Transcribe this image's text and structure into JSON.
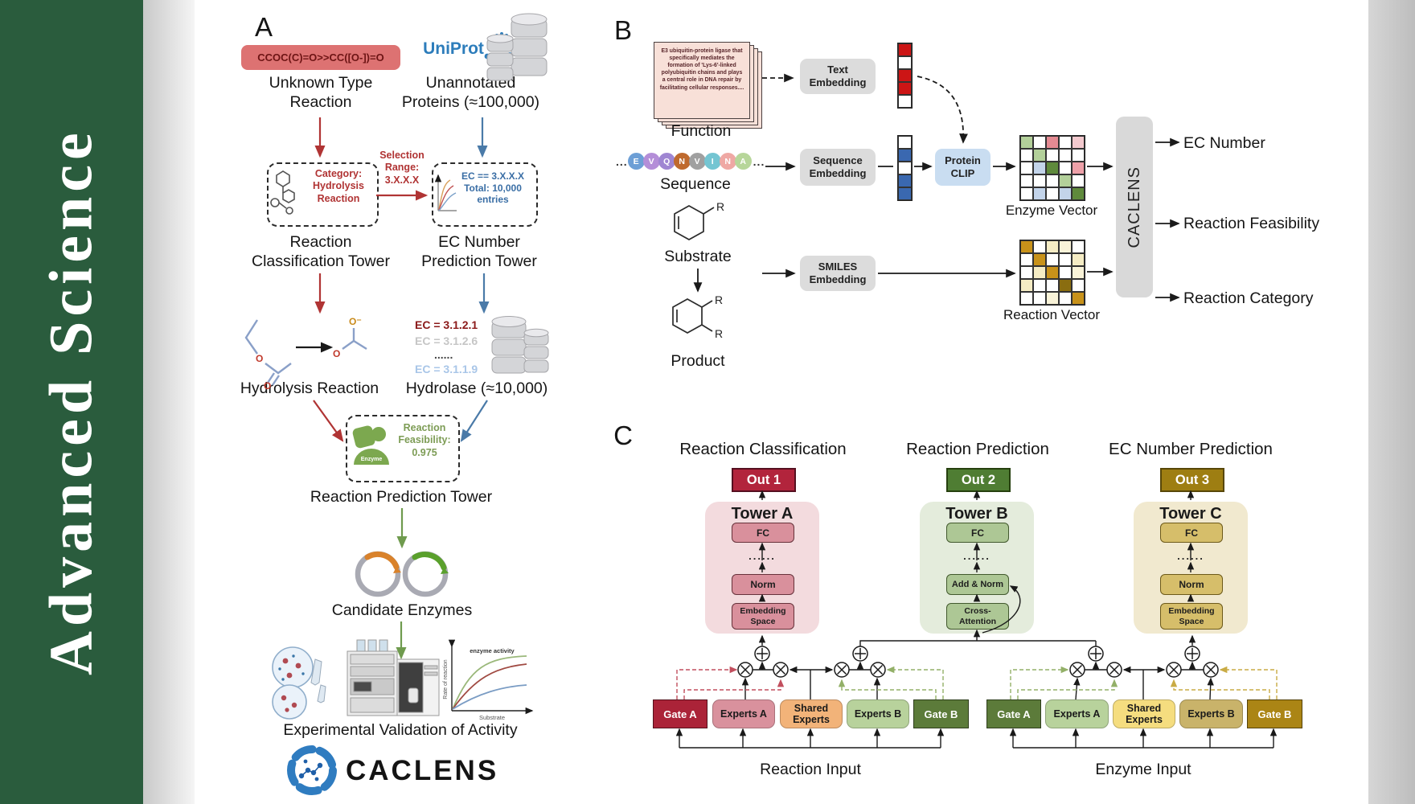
{
  "sidebar": {
    "journal_title": "Advanced  Science"
  },
  "panel_a": {
    "label": "A",
    "smiles": "CCOC(C)=O>>CC([O-])=O",
    "unknown_type_label": "Unknown Type\nReaction",
    "uniprot_logo_text": "UniProt",
    "unannotated_label": "Unannotated\nProteins (≈100,000)",
    "category_box_text": "Category:\nHydrolysis\nReaction",
    "selection_range_text": "Selection\nRange:\n3.X.X.X",
    "ec_range_box_text": "EC == 3.X.X.X\nTotal: 10,000\nentries",
    "classification_tower_label": "Reaction\nClassification Tower",
    "ec_tower_label": "EC Number\nPrediction Tower",
    "ec_list": [
      "EC = 3.1.2.1",
      "EC = 3.1.2.6",
      "......",
      "EC = 3.1.1.9"
    ],
    "hydrolysis_label": "Hydrolysis Reaction",
    "hydrolase_label": "Hydrolase (≈10,000)",
    "enzyme_badge": "Enzyme",
    "feasibility_text": "Reaction\nFeasibility:\n0.975",
    "prediction_tower_label": "Reaction Prediction Tower",
    "candidate_label": "Candidate Enzymes",
    "activity_plot": {
      "ylabel": "Rate of reaction",
      "xlabel": "Substrate",
      "annotation": "enzyme activity"
    },
    "validation_label": "Experimental Validation of Activity",
    "brand": "CACLENS"
  },
  "panel_b": {
    "label": "B",
    "function_card_text": "E3 ubiquitin-protein ligase that specifically mediates the formation of 'Lys-6'-linked polyubiquitin chains and plays a central role in DNA repair by facilitating cellular responses....",
    "function_label": "Function",
    "ellipsis_left": "...",
    "ellipsis_right": "...",
    "residues": [
      {
        "ch": "E",
        "color": "#6d9fd6"
      },
      {
        "ch": "V",
        "color": "#b48ed8"
      },
      {
        "ch": "Q",
        "color": "#9f86d2"
      },
      {
        "ch": "N",
        "color": "#bf6a2e"
      },
      {
        "ch": "V",
        "color": "#a0a0a0"
      },
      {
        "ch": "I",
        "color": "#74c5d2"
      },
      {
        "ch": "N",
        "color": "#efa8a4"
      },
      {
        "ch": "A",
        "color": "#b7d69a"
      }
    ],
    "sequence_label": "Sequence",
    "substrate_label": "Substrate",
    "product_label": "Product",
    "r_group": "R",
    "text_embedding_label": "Text\nEmbedding",
    "sequence_embedding_label": "Sequence\nEmbedding",
    "smiles_embedding_label": "SMILES\nEmbedding",
    "protein_clip_label": "Protein\nCLIP",
    "text_vector": [
      "#cc1515",
      "#ffffff",
      "#cc1515",
      "#cc1515",
      "#ffffff"
    ],
    "sequence_vector": [
      "#ffffff",
      "#3a68b0",
      "#ffffff",
      "#3a68b0",
      "#3a68b0"
    ],
    "enzyme_matrix": [
      [
        "#b3d09a",
        "#ffffff",
        "#e48a92",
        "#ffffff",
        "#f3c9ce"
      ],
      [
        "#ffffff",
        "#b3d09a",
        "#ffffff",
        "#ffffff",
        "#ffffff"
      ],
      [
        "#ffffff",
        "#c3d4ea",
        "#5f8a3c",
        "#ffffff",
        "#eda0a8"
      ],
      [
        "#ffffff",
        "#ffffff",
        "#ffffff",
        "#b3d09a",
        "#ffffff"
      ],
      [
        "#ffffff",
        "#c3d4ea",
        "#ffffff",
        "#c3d4ea",
        "#5f8a3c"
      ]
    ],
    "reaction_matrix": [
      [
        "#c8921a",
        "#ffffff",
        "#f5ecc4",
        "#f9f3d8",
        "#ffffff"
      ],
      [
        "#ffffff",
        "#c8921a",
        "#ffffff",
        "#ffffff",
        "#f5ecc4"
      ],
      [
        "#ffffff",
        "#f5ecc4",
        "#c8921a",
        "#ffffff",
        "#f9f3d8"
      ],
      [
        "#f5ecc4",
        "#ffffff",
        "#ffffff",
        "#8a6d10",
        "#ffffff"
      ],
      [
        "#ffffff",
        "#ffffff",
        "#f9f3d8",
        "#ffffff",
        "#c8921a"
      ]
    ],
    "enzyme_vector_label": "Enzyme Vector",
    "reaction_vector_label": "Reaction Vector",
    "caclens_bar": "CACLENS",
    "outputs": [
      "EC Number",
      "Reaction Feasibility",
      "Reaction Category"
    ]
  },
  "panel_c": {
    "label": "C",
    "towers": [
      {
        "title": "Reaction Classification",
        "out": "Out 1",
        "name": "Tower A",
        "fc": "FC",
        "dots": "......",
        "mid": "Norm",
        "bottom": "Embedding\nSpace"
      },
      {
        "title": "Reaction Prediction",
        "out": "Out 2",
        "name": "Tower B",
        "fc": "FC",
        "dots": "......",
        "mid": "Add & Norm",
        "bottom": "Cross-\nAttention"
      },
      {
        "title": "EC Number Prediction",
        "out": "Out 3",
        "name": "Tower C",
        "fc": "FC",
        "dots": "......",
        "mid": "Norm",
        "bottom": "Embedding\nSpace"
      }
    ],
    "groups": [
      {
        "gate_a": "Gate A",
        "experts_a": "Experts A",
        "shared": "Shared\nExperts",
        "experts_b": "Experts B",
        "gate_b": "Gate B",
        "input": "Reaction Input"
      },
      {
        "gate_a": "Gate A",
        "experts_a": "Experts A",
        "shared": "Shared\nExperts",
        "experts_b": "Experts B",
        "gate_b": "Gate B",
        "input": "Enzyme Input"
      }
    ]
  },
  "colors": {
    "sidebar_green": "#2a5c3d",
    "smiles_red_bg": "#dd7272",
    "smiles_red_text": "#6d1414",
    "arrow_red": "#b03434",
    "arrow_blue": "#4a7aa8",
    "arrow_green": "#6f9b4e",
    "uniprot_blue": "#2d7dbb",
    "category_red": "#b03333",
    "ec_blue": "#3a6ea5",
    "ec_dark_red": "#8b1a1a",
    "ec_gray": "#c6c6c6",
    "ec_light_blue": "#a9c6e8",
    "feasibility_green": "#7d9c55",
    "enzyme_green": "#7CA84F",
    "clip_blue": "#c9ddf1",
    "embed_gray": "#dcdcdc",
    "caclens_bar_gray": "#d9d9d9",
    "out1": "#b2243c",
    "out2": "#4f7d33",
    "out3": "#9e7e12",
    "tower_a_bg": "#f3dbde",
    "tower_b_bg": "#e4ecdc",
    "tower_c_bg": "#f1e9cf",
    "block_a": "#d9909c",
    "block_b": "#adc795",
    "block_c": "#d6be6a",
    "g0": {
      "gate_a": "#ab2338",
      "experts_a": "#d9919d",
      "shared": "#f2b379",
      "experts_b": "#b8d29c",
      "gate_b": "#5c7b3a"
    },
    "g1": {
      "gate_a": "#5c7b3a",
      "experts_a": "#b8d29c",
      "shared": "#f5dd7f",
      "experts_b": "#c9b36a",
      "gate_b": "#ab8515"
    }
  }
}
